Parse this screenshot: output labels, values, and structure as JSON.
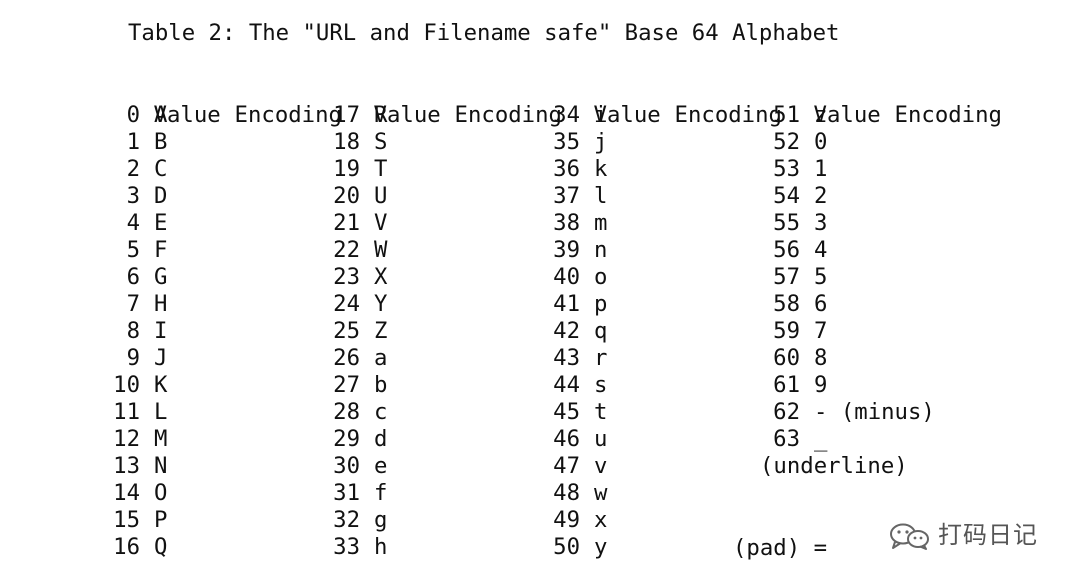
{
  "title": "Table 2: The \"URL and Filename safe\" Base 64 Alphabet",
  "header": {
    "value": "Value",
    "encoding": "Encoding"
  },
  "columns": [
    {
      "rows": [
        {
          "value": "0",
          "encoding": "A"
        },
        {
          "value": "1",
          "encoding": "B"
        },
        {
          "value": "2",
          "encoding": "C"
        },
        {
          "value": "3",
          "encoding": "D"
        },
        {
          "value": "4",
          "encoding": "E"
        },
        {
          "value": "5",
          "encoding": "F"
        },
        {
          "value": "6",
          "encoding": "G"
        },
        {
          "value": "7",
          "encoding": "H"
        },
        {
          "value": "8",
          "encoding": "I"
        },
        {
          "value": "9",
          "encoding": "J"
        },
        {
          "value": "10",
          "encoding": "K"
        },
        {
          "value": "11",
          "encoding": "L"
        },
        {
          "value": "12",
          "encoding": "M"
        },
        {
          "value": "13",
          "encoding": "N"
        },
        {
          "value": "14",
          "encoding": "O"
        },
        {
          "value": "15",
          "encoding": "P"
        },
        {
          "value": "16",
          "encoding": "Q"
        }
      ]
    },
    {
      "rows": [
        {
          "value": "17",
          "encoding": "R"
        },
        {
          "value": "18",
          "encoding": "S"
        },
        {
          "value": "19",
          "encoding": "T"
        },
        {
          "value": "20",
          "encoding": "U"
        },
        {
          "value": "21",
          "encoding": "V"
        },
        {
          "value": "22",
          "encoding": "W"
        },
        {
          "value": "23",
          "encoding": "X"
        },
        {
          "value": "24",
          "encoding": "Y"
        },
        {
          "value": "25",
          "encoding": "Z"
        },
        {
          "value": "26",
          "encoding": "a"
        },
        {
          "value": "27",
          "encoding": "b"
        },
        {
          "value": "28",
          "encoding": "c"
        },
        {
          "value": "29",
          "encoding": "d"
        },
        {
          "value": "30",
          "encoding": "e"
        },
        {
          "value": "31",
          "encoding": "f"
        },
        {
          "value": "32",
          "encoding": "g"
        },
        {
          "value": "33",
          "encoding": "h"
        }
      ]
    },
    {
      "rows": [
        {
          "value": "34",
          "encoding": "i"
        },
        {
          "value": "35",
          "encoding": "j"
        },
        {
          "value": "36",
          "encoding": "k"
        },
        {
          "value": "37",
          "encoding": "l"
        },
        {
          "value": "38",
          "encoding": "m"
        },
        {
          "value": "39",
          "encoding": "n"
        },
        {
          "value": "40",
          "encoding": "o"
        },
        {
          "value": "41",
          "encoding": "p"
        },
        {
          "value": "42",
          "encoding": "q"
        },
        {
          "value": "43",
          "encoding": "r"
        },
        {
          "value": "44",
          "encoding": "s"
        },
        {
          "value": "45",
          "encoding": "t"
        },
        {
          "value": "46",
          "encoding": "u"
        },
        {
          "value": "47",
          "encoding": "v"
        },
        {
          "value": "48",
          "encoding": "w"
        },
        {
          "value": "49",
          "encoding": "x"
        },
        {
          "value": "50",
          "encoding": "y"
        }
      ]
    },
    {
      "rows": [
        {
          "value": "51",
          "encoding": "z"
        },
        {
          "value": "52",
          "encoding": "0"
        },
        {
          "value": "53",
          "encoding": "1"
        },
        {
          "value": "54",
          "encoding": "2"
        },
        {
          "value": "55",
          "encoding": "3"
        },
        {
          "value": "56",
          "encoding": "4"
        },
        {
          "value": "57",
          "encoding": "5"
        },
        {
          "value": "58",
          "encoding": "6"
        },
        {
          "value": "59",
          "encoding": "7"
        },
        {
          "value": "60",
          "encoding": "8"
        },
        {
          "value": "61",
          "encoding": "9"
        },
        {
          "value": "62",
          "encoding": "- (minus)"
        },
        {
          "value": "63",
          "encoding": "_"
        }
      ]
    }
  ],
  "notes": {
    "underline": "(underline)",
    "pad_label": "(pad)",
    "pad_symbol": "="
  },
  "watermark": {
    "text": "打码日记",
    "icon": "wechat-icon"
  }
}
